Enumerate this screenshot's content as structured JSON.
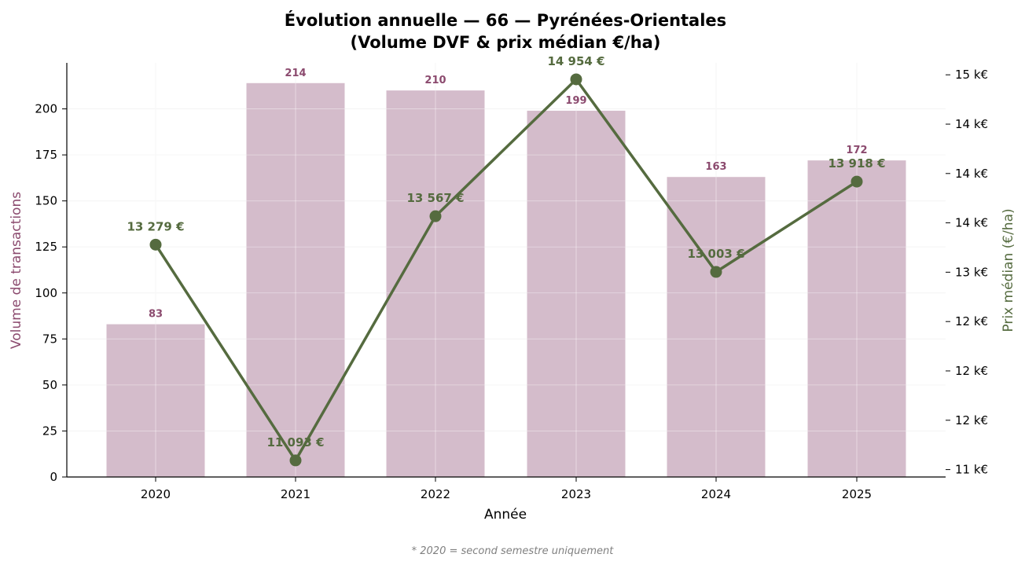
{
  "chart_data": {
    "type": "bar+line",
    "title_line1": "Évolution annuelle — 66 — Pyrénées-Orientales",
    "title_line2": "(Volume DVF & prix médian €/ha)",
    "xlabel": "Année",
    "ylabel_left": "Volume de transactions",
    "ylabel_right": "Prix médian (€/ha)",
    "categories": [
      "2020",
      "2021",
      "2022",
      "2023",
      "2024",
      "2025"
    ],
    "series": [
      {
        "axis": "left",
        "kind": "bar",
        "values": [
          83,
          214,
          210,
          199,
          163,
          172
        ],
        "labels": [
          "83",
          "214",
          "210",
          "199",
          "163",
          "172"
        ],
        "color": "#d4bccb",
        "label_color": "#8b4a6e"
      },
      {
        "axis": "right",
        "kind": "line",
        "values": [
          13279,
          11093,
          13567,
          14954,
          13003,
          13918
        ],
        "labels": [
          "13 279 €",
          "11 093 €",
          "13 567 €",
          "14 954 €",
          "13 003 €",
          "13 918 €"
        ],
        "color": "#556b3f"
      }
    ],
    "left_axis": {
      "ylim": [
        0,
        225
      ],
      "ticks": [
        0,
        25,
        50,
        75,
        100,
        125,
        150,
        175,
        200
      ],
      "tick_labels": [
        "0",
        "25",
        "50",
        "75",
        "100",
        "125",
        "150",
        "175",
        "200"
      ]
    },
    "right_axis": {
      "ylim": [
        10925,
        15121
      ],
      "ticks": [
        11000,
        11500,
        12000,
        12500,
        13000,
        13500,
        14000,
        14500,
        15000
      ],
      "tick_labels": [
        "11 k€",
        "12 k€",
        "12 k€",
        "12 k€",
        "13 k€",
        "14 k€",
        "14 k€",
        "14 k€",
        "15 k€"
      ]
    },
    "grid": true,
    "footnote": "* 2020 = second semestre uniquement"
  }
}
